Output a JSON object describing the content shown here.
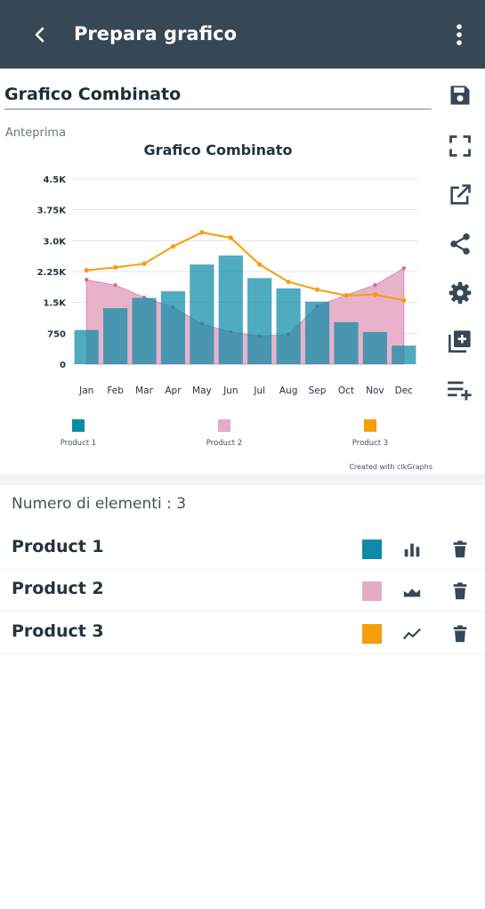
{
  "appbar": {
    "title": "Prepara grafico",
    "back_icon": "back-arrow-icon",
    "menu_icon": "more-vert-icon"
  },
  "form": {
    "chart_title_value": "Grafico Combinato",
    "preview_label": "Anteprima"
  },
  "toolbar": [
    {
      "name": "save-icon"
    },
    {
      "name": "fullscreen-icon"
    },
    {
      "name": "open-external-icon"
    },
    {
      "name": "share-icon"
    },
    {
      "name": "settings-icon"
    },
    {
      "name": "add-series-icon"
    },
    {
      "name": "add-playlist-icon"
    }
  ],
  "chart_data": {
    "type": "combo",
    "title": "Grafico Combinato",
    "categories": [
      "Jan",
      "Feb",
      "Mar",
      "Apr",
      "May",
      "Jun",
      "Jul",
      "Aug",
      "Sep",
      "Oct",
      "Nov",
      "Dec"
    ],
    "yticks": [
      "0",
      "750",
      "1.5K",
      "2.25K",
      "3.0K",
      "3.75K",
      "4.5K"
    ],
    "ylim": [
      0,
      4500
    ],
    "grid": true,
    "legend_position": "bottom",
    "credit": "Created with clkGraphs",
    "series": [
      {
        "name": "Product 1",
        "type": "bar",
        "color": "#0b8ba7",
        "values": [
          830,
          1360,
          1610,
          1770,
          2420,
          2640,
          2090,
          1840,
          1520,
          1020,
          780,
          450
        ]
      },
      {
        "name": "Product 2",
        "type": "area",
        "color": "#e5abc4",
        "values": [
          2050,
          1920,
          1620,
          1380,
          980,
          780,
          680,
          720,
          1410,
          1680,
          1920,
          2330
        ]
      },
      {
        "name": "Product 3",
        "type": "line",
        "color": "#f59e0b",
        "values": [
          2280,
          2350,
          2440,
          2860,
          3200,
          3070,
          2420,
          2000,
          1810,
          1670,
          1690,
          1550
        ]
      }
    ]
  },
  "series_list": {
    "count_label": "Numero di elementi : 3",
    "items": [
      {
        "name": "Product 1",
        "color": "#0b8ba7",
        "type_icon": "bar-chart-icon"
      },
      {
        "name": "Product 2",
        "color": "#e5abc4",
        "type_icon": "area-chart-icon"
      },
      {
        "name": "Product 3",
        "color": "#f59e0b",
        "type_icon": "line-chart-icon"
      }
    ],
    "delete_icon": "delete-icon"
  }
}
